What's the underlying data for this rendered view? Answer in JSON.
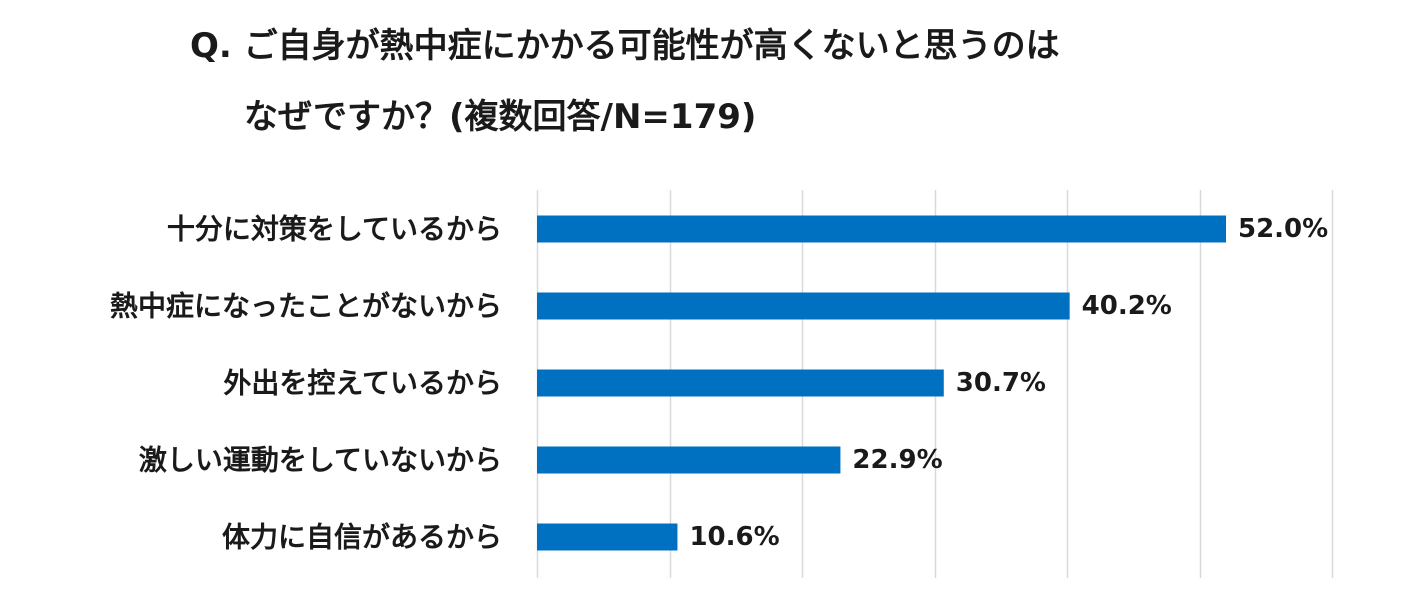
{
  "title_line1": "Q. ご自身が熱中症にかかる可能性が高くないと思うのは",
  "title_line2": "なぜですか？(複数回答/N=179)",
  "chart_data": {
    "type": "bar",
    "orientation": "horizontal",
    "title": "Q. ご自身が熱中症にかかる可能性が高くないと思うのは なぜですか？(複数回答/N=179)",
    "categories": [
      "十分に対策をしているから",
      "熱中症になったことがないから",
      "外出を控えているから",
      "激しい運動をしていないから",
      "体力に自信があるから"
    ],
    "values": [
      52.0,
      40.2,
      30.7,
      22.9,
      10.6
    ],
    "data_labels": [
      "52.0%",
      "40.2%",
      "30.7%",
      "22.9%",
      "10.6%"
    ],
    "unit": "%",
    "xlim": [
      0,
      60
    ],
    "grid": true,
    "bar_color": "#0070C0",
    "grid_color": "#d9d9d9"
  }
}
